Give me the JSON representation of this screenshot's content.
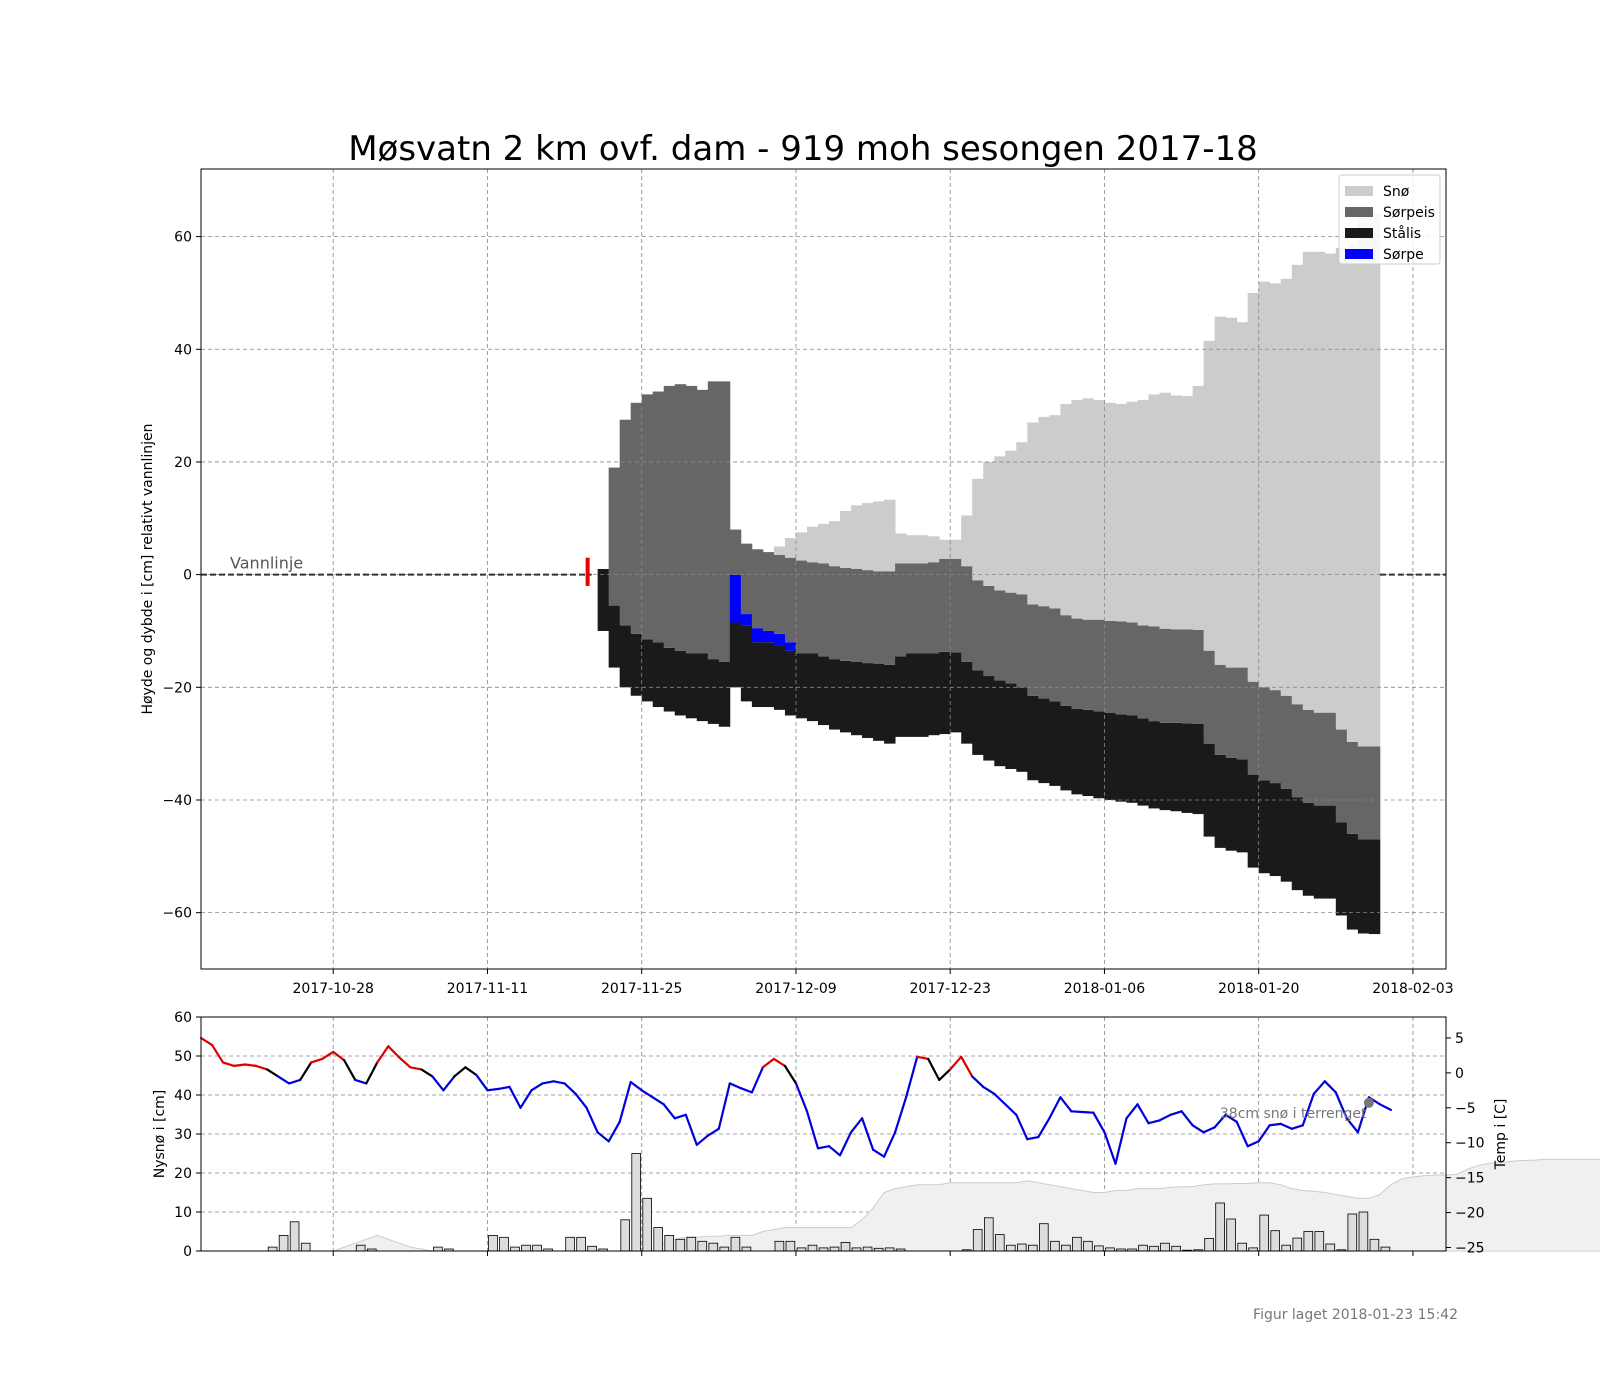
{
  "title": "Møsvatn 2 km ovf. dam - 919 moh sesongen 2017-18",
  "footer": "Figur laget 2018-01-23 15:42",
  "colors": {
    "snow": "#cccccc",
    "slush_ice": "#666666",
    "black_ice": "#1a1a1a",
    "slush": "#0000ff",
    "temp_warm": "#dd0000",
    "temp_near_zero": "#000000",
    "temp_cold": "#0000dd",
    "grid": "#888888",
    "water_line": "#333333",
    "terrain_snow_fill": "#f0f0f0",
    "new_snow_bar": "#dddddd"
  },
  "chart_data": [
    {
      "type": "area",
      "name": "ice-profile",
      "ylabel": "Høyde og dybde i [cm] relativt vannlinjen",
      "xlabel": "",
      "ylim": [
        -70,
        72
      ],
      "yticks": [
        -60,
        -40,
        -20,
        0,
        20,
        40,
        60
      ],
      "xlim": [
        "2017-10-16",
        "2018-02-06"
      ],
      "xticks": [
        "2017-10-28",
        "2017-11-11",
        "2017-11-25",
        "2017-12-09",
        "2017-12-23",
        "2018-01-06",
        "2018-01-20",
        "2018-02-03"
      ],
      "grid": true,
      "legend": {
        "placement": "top-right",
        "entries": [
          {
            "label": "Snø",
            "color_key": "snow"
          },
          {
            "label": "Sørpeis",
            "color_key": "slush_ice"
          },
          {
            "label": "Stålis",
            "color_key": "black_ice"
          },
          {
            "label": "Sørpe",
            "color_key": "slush"
          }
        ]
      },
      "annotations": [
        {
          "text": "Vannlinje",
          "x": "2017-10-19",
          "y": 0
        }
      ],
      "water_line_y": 0,
      "first_ice_marker": {
        "date": "2017-11-20",
        "y_top": 3,
        "y_bottom": -2
      },
      "start_date": "2017-11-21",
      "columns": [
        [
          -10,
          1,
          1,
          1,
          1,
          1,
          1,
          1
        ],
        [
          -16.5,
          -5.5,
          -5.5,
          -5.5,
          -5.5,
          19,
          19,
          19
        ],
        [
          -20,
          -9,
          -9,
          -9,
          -9,
          27.5,
          27.5,
          27.5
        ],
        [
          -21.5,
          -10.5,
          -10.5,
          -10.5,
          -10.5,
          30.5,
          30.5,
          30.5
        ],
        [
          -22.5,
          -11.5,
          -11.5,
          -11.5,
          -11.5,
          32,
          32,
          32
        ],
        [
          -23.5,
          -12,
          -12,
          -12,
          -12,
          32.5,
          32.5,
          32.5
        ],
        [
          -24.3,
          -13,
          -13,
          -13,
          -13,
          33.5,
          33.5,
          33.5
        ],
        [
          -25,
          -13.5,
          -13.5,
          -13.5,
          -13.5,
          33.8,
          33.8,
          33.8
        ],
        [
          -25.5,
          -14,
          -14,
          -14,
          -14,
          33.5,
          33.5,
          33.5
        ],
        [
          -26,
          -14,
          -14,
          -14,
          -14,
          32.8,
          32.8,
          32.8
        ],
        [
          -26.5,
          -15,
          -15,
          -15,
          -15,
          34.3,
          34.3,
          34.3
        ],
        [
          -27,
          -15.5,
          -15.5,
          -15.5,
          -15.5,
          34.3,
          34.3,
          34.3
        ],
        [
          -20,
          -8.5,
          -8.5,
          0,
          0,
          8,
          8,
          8
        ],
        [
          -22.5,
          -9,
          -9,
          -7,
          -7,
          5.5,
          5.5,
          5.5
        ],
        [
          -23.5,
          -12,
          -12,
          -9.5,
          -9.5,
          4.5,
          4.5,
          4.5
        ],
        [
          -23.5,
          -12,
          -12,
          -10,
          -10,
          4,
          4,
          4
        ],
        [
          -24,
          -12.5,
          -12.5,
          -10.5,
          -10.5,
          3.5,
          3.5,
          5
        ],
        [
          -25,
          -13.5,
          -13.5,
          -12,
          -12,
          3,
          3,
          6.5
        ],
        [
          -25.5,
          -14,
          -14,
          -14,
          -14,
          2.5,
          2.5,
          7.5
        ],
        [
          -26,
          -14,
          -14,
          -14,
          -14,
          2.2,
          2.2,
          8.5
        ],
        [
          -26.7,
          -14.5,
          -14.5,
          -14.5,
          -14.5,
          2,
          2,
          9
        ],
        [
          -27.5,
          -15,
          -15,
          -15,
          -15,
          1.5,
          1.5,
          9.5
        ],
        [
          -28,
          -15.3,
          -15.3,
          -15.3,
          -15.3,
          1.2,
          1.2,
          11.3
        ],
        [
          -28.5,
          -15.5,
          -15.5,
          -15.5,
          -15.5,
          1,
          1,
          12.3
        ],
        [
          -29,
          -15.7,
          -15.7,
          -15.7,
          -15.7,
          0.8,
          0.8,
          12.7
        ],
        [
          -29.5,
          -15.8,
          -15.8,
          -15.8,
          -15.8,
          0.6,
          0.6,
          13
        ],
        [
          -30,
          -16,
          -16,
          -16,
          -16,
          0.6,
          0.6,
          13.3
        ],
        [
          -28.8,
          -14.5,
          -14.5,
          -14.5,
          -14.5,
          2,
          2,
          7.3
        ],
        [
          -28.8,
          -14,
          -14,
          -14,
          -14,
          2,
          2,
          7
        ],
        [
          -28.8,
          -14,
          -14,
          -14,
          -14,
          2,
          2,
          7
        ],
        [
          -28.5,
          -14,
          -14,
          -14,
          -14,
          2.2,
          2.2,
          6.8
        ],
        [
          -28.3,
          -13.7,
          -13.7,
          -13.7,
          -13.7,
          2.8,
          2.8,
          6.2
        ],
        [
          -28,
          -13.8,
          -13.8,
          -13.8,
          -13.8,
          2.8,
          2.8,
          6.2
        ],
        [
          -30,
          -15.5,
          -15.5,
          -15.5,
          -15.5,
          1.5,
          1.5,
          10.5
        ],
        [
          -32,
          -17,
          -17,
          -17,
          -17,
          -1,
          -1,
          17
        ],
        [
          -33,
          -18,
          -18,
          -18,
          -18,
          -2,
          -2,
          20
        ],
        [
          -34,
          -18.8,
          -18.8,
          -18.8,
          -18.8,
          -2.8,
          -2.8,
          21
        ],
        [
          -34.5,
          -19.3,
          -19.3,
          -19.3,
          -19.3,
          -3.2,
          -3.2,
          22
        ],
        [
          -35,
          -20,
          -20,
          -20,
          -20,
          -3.5,
          -3.5,
          23.5
        ],
        [
          -36.5,
          -21.5,
          -21.5,
          -21.5,
          -21.5,
          -5.3,
          -5.3,
          27
        ],
        [
          -37,
          -22,
          -22,
          -22,
          -22,
          -5.6,
          -5.6,
          28
        ],
        [
          -37.5,
          -22.5,
          -22.5,
          -22.5,
          -22.5,
          -6,
          -6,
          28.3
        ],
        [
          -38.3,
          -23.3,
          -23.3,
          -23.3,
          -23.3,
          -7.2,
          -7.2,
          30.3
        ],
        [
          -39,
          -23.8,
          -23.8,
          -23.8,
          -23.8,
          -7.8,
          -7.8,
          31
        ],
        [
          -39.3,
          -24,
          -24,
          -24,
          -24,
          -8,
          -8,
          31.3
        ],
        [
          -39.7,
          -24.3,
          -24.3,
          -24.3,
          -24.3,
          -8,
          -8,
          31
        ],
        [
          -40,
          -24.5,
          -24.5,
          -24.5,
          -24.5,
          -8.2,
          -8.2,
          30.5
        ],
        [
          -40.3,
          -24.8,
          -24.8,
          -24.8,
          -24.8,
          -8.3,
          -8.3,
          30.3
        ],
        [
          -40.5,
          -25,
          -25,
          -25,
          -25,
          -8.5,
          -8.5,
          30.7
        ],
        [
          -41,
          -25.5,
          -25.5,
          -25.5,
          -25.5,
          -9,
          -9,
          31
        ],
        [
          -41.5,
          -26,
          -26,
          -26,
          -26,
          -9.2,
          -9.2,
          32
        ],
        [
          -41.8,
          -26.3,
          -26.3,
          -26.3,
          -26.3,
          -9.6,
          -9.6,
          32.3
        ],
        [
          -42,
          -26.3,
          -26.3,
          -26.3,
          -26.3,
          -9.7,
          -9.7,
          31.8
        ],
        [
          -42.3,
          -26.4,
          -26.4,
          -26.4,
          -26.4,
          -9.7,
          -9.7,
          31.7
        ],
        [
          -42.5,
          -26.5,
          -26.5,
          -26.5,
          -26.5,
          -9.8,
          -9.8,
          33.5
        ],
        [
          -46.5,
          -30,
          -30,
          -30,
          -30,
          -13.5,
          -13.5,
          41.5
        ],
        [
          -48.5,
          -32,
          -32,
          -32,
          -32,
          -16,
          -16,
          45.8
        ],
        [
          -49,
          -32.5,
          -32.5,
          -32.5,
          -32.5,
          -16.5,
          -16.5,
          45.6
        ],
        [
          -49.3,
          -32.8,
          -32.8,
          -32.8,
          -32.8,
          -16.5,
          -16.5,
          44.8
        ],
        [
          -52,
          -35.5,
          -35.5,
          -35.5,
          -35.5,
          -19,
          -19,
          50
        ],
        [
          -53,
          -36.5,
          -36.5,
          -36.5,
          -36.5,
          -20,
          -20,
          52
        ],
        [
          -53.5,
          -37,
          -37,
          -37,
          -37,
          -20.5,
          -20.5,
          51.7
        ],
        [
          -54.5,
          -38,
          -38,
          -38,
          -38,
          -21.5,
          -21.5,
          52.5
        ],
        [
          -56,
          -39.5,
          -39.5,
          -39.5,
          -39.5,
          -23,
          -23,
          55
        ],
        [
          -57,
          -40.5,
          -40.5,
          -40.5,
          -40.5,
          -24,
          -24,
          57.3
        ],
        [
          -57.5,
          -41,
          -41,
          -41,
          -41,
          -24.5,
          -24.5,
          57.3
        ],
        [
          -57.5,
          -41,
          -41,
          -41,
          -41,
          -24.5,
          -24.5,
          57
        ],
        [
          -60.5,
          -44,
          -44,
          -44,
          -44,
          -27.5,
          -27.5,
          58
        ],
        [
          -63,
          -46,
          -46,
          -46,
          -46,
          -29.7,
          -29.7,
          58.5
        ],
        [
          -63.7,
          -47,
          -47,
          -47,
          -47,
          -30.5,
          -30.5,
          63.5
        ],
        [
          -63.8,
          -47,
          -47,
          -47,
          -47,
          -30.5,
          -30.5,
          64
        ]
      ]
    },
    {
      "type": "bar",
      "name": "new-snow-and-temperature",
      "ylabel": "Nysnø i [cm]",
      "ylabel_right": "Temp i [C]",
      "ylim": [
        0,
        60
      ],
      "yticks": [
        0,
        10,
        20,
        30,
        40,
        50,
        60
      ],
      "ylim_right": [
        -25.5,
        8
      ],
      "yticks_right": [
        -25,
        -20,
        -15,
        -10,
        -5,
        0,
        5
      ],
      "xlim": [
        "2017-10-16",
        "2018-02-06"
      ],
      "xticks": [
        "2017-10-28",
        "2017-11-11",
        "2017-11-25",
        "2017-12-09",
        "2017-12-23",
        "2018-01-06",
        "2018-01-20",
        "2018-02-03"
      ],
      "grid": true,
      "annotations": [
        {
          "text": "38cm snø i terrenget",
          "x": "2018-01-30",
          "y": 38
        }
      ],
      "start_date": "2017-10-16",
      "new_snow_cm": [
        0,
        0,
        0,
        0,
        0,
        0,
        1,
        4,
        7.5,
        2,
        0,
        0,
        0,
        0,
        1.5,
        0.5,
        0,
        0,
        0,
        0,
        0,
        1,
        0.5,
        0,
        0,
        0,
        4,
        3.5,
        1,
        1.5,
        1.5,
        0.5,
        0,
        3.5,
        3.5,
        1.2,
        0.5,
        0,
        8,
        25,
        13.5,
        6,
        4,
        3,
        3.5,
        2.5,
        2,
        1,
        3.5,
        1,
        0,
        0,
        0,
        0,
        0,
        0,
        0,
        0,
        0,
        0,
        0,
        0,
        0,
        0,
        0,
        0,
        0,
        0,
        0,
        0,
        0,
        0,
        0,
        0,
        0,
        0,
        0,
        0,
        0,
        0,
        0,
        0,
        0,
        0,
        0,
        0,
        0,
        0,
        0,
        0,
        0,
        0,
        0,
        0,
        0,
        0,
        0,
        0,
        0,
        0,
        0,
        0,
        0,
        0,
        0,
        0,
        0,
        0,
        0,
        0,
        0,
        0,
        0
      ],
      "new_snow_cm_2": {
        "start_date": "2017-12-07",
        "values": [
          2.5,
          2.5,
          0.8,
          1.5,
          0.8,
          1,
          2.2,
          0.8,
          1,
          0.7,
          0.8,
          0.5,
          0,
          0,
          0,
          0,
          0,
          0.3,
          5.5,
          8.5,
          4.2,
          1.5,
          1.8,
          1.5,
          7,
          2.5,
          1.5,
          3.5,
          2.5,
          1.3,
          0.8,
          0.5,
          0.5,
          1.5,
          1.2,
          2,
          1.2,
          0.2,
          0.3,
          3.2,
          12.3,
          8.2,
          2,
          0.8,
          9.2,
          5.2,
          1.5,
          3.3,
          5,
          5,
          1.8,
          0.3,
          9.5,
          10,
          3,
          1
        ]
      },
      "terrain_snow_cm": {
        "start_date": "2017-10-24",
        "values": [
          0,
          0,
          0,
          0,
          0,
          1,
          2,
          3,
          4,
          3,
          2,
          1,
          0.5,
          0,
          0,
          0,
          0,
          0,
          0,
          0,
          0,
          0,
          0,
          0,
          0,
          0,
          0,
          0,
          0,
          0,
          0,
          0,
          0,
          0,
          2,
          3,
          3.5,
          3.5,
          3.8,
          3.8,
          4,
          4,
          4,
          5,
          5.5,
          6,
          6,
          6,
          6,
          6,
          6,
          6,
          8,
          11,
          15,
          16,
          16.5,
          17,
          17,
          17,
          17.5,
          17.5,
          17.5,
          17.5,
          17.5,
          17.5,
          17.5,
          18,
          17.5,
          17,
          16.5,
          16,
          15.5,
          15,
          15,
          15.5,
          15.5,
          16,
          16,
          16,
          16.3,
          16.5,
          16.5,
          17,
          17.2,
          17.2,
          17.3,
          17.3,
          17.5,
          17.5,
          17,
          16,
          15.5,
          15.3,
          15,
          14.5,
          14,
          13.5,
          13.5,
          14.5,
          17,
          18.5,
          19,
          19.3,
          19.5,
          19.5,
          19.7,
          21,
          22,
          22.5,
          22.7,
          23,
          23.2,
          23.3,
          23.5,
          23.5,
          23.5,
          23.5,
          23.5,
          23.5,
          23.5,
          23.5,
          24,
          24,
          24,
          24,
          24,
          24,
          24,
          25,
          28,
          31,
          34,
          34.5,
          35,
          35.5,
          35.5,
          36,
          36.5,
          37,
          37,
          37,
          37.2,
          37.5,
          38,
          38,
          38,
          38,
          38
        ]
      },
      "temperature_c": {
        "start_date": "2017-10-16",
        "values": [
          5,
          4,
          1.5,
          1,
          1.2,
          1,
          0.5,
          -0.5,
          -1.5,
          -1,
          1.5,
          2,
          3,
          1.8,
          -1,
          -1.5,
          1.5,
          3.8,
          2.2,
          0.8,
          0.5,
          -0.5,
          -2.5,
          -0.5,
          0.8,
          -0.3,
          -2.5,
          -2.3,
          -2,
          -5,
          -2.5,
          -1.5,
          -1.2,
          -1.5,
          -3,
          -5,
          -8.5,
          -9.8,
          -7,
          -1.3,
          -2.5,
          -3.5,
          -4.5,
          -6.5,
          -6,
          -10.3,
          -9,
          -8,
          -1.5,
          -2.2,
          -2.8,
          0.8,
          2,
          1,
          -1.5,
          -5.5,
          -10.8,
          -10.5,
          -11.8,
          -8.5,
          -6.5,
          -11,
          -12,
          -8.5,
          -3.5,
          2.3,
          2,
          -1,
          0.5,
          2.3,
          -0.5,
          -2,
          -3,
          -4.5,
          -6,
          -9.5,
          -9.2,
          -6.5,
          -3.5,
          -5.5,
          -5.6,
          -5.7,
          -8.5,
          -13,
          -6.5,
          -4.5,
          -7.2,
          -6.8,
          -6,
          -5.5,
          -7.5,
          -8.5,
          -7.8,
          -6,
          -7,
          -10.5,
          -9.8,
          -7.5,
          -7.3,
          -8,
          -7.5,
          -3,
          -1.2,
          -2.8,
          -6.5,
          -8.5,
          -3.5,
          -4.5,
          -5.3
        ]
      },
      "temperature_color_rule": {
        "warm_above": 0.5,
        "cold_below": -0.5
      }
    }
  ]
}
